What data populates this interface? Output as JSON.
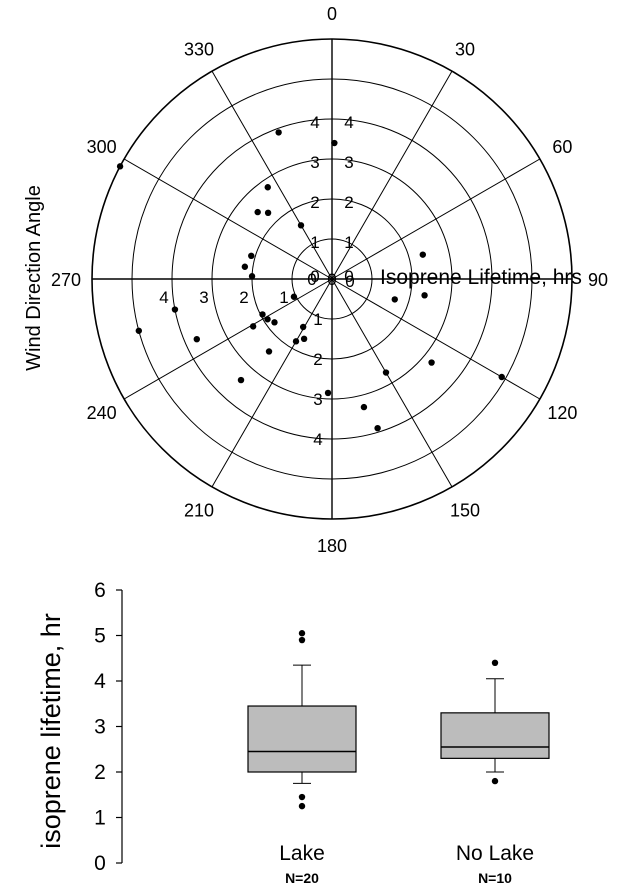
{
  "chart_data": [
    {
      "type": "scatter",
      "subtype": "polar",
      "title": "",
      "angle_label": "Wind Direction Angle",
      "radius_label": "Isoprene Lifetime, hrs",
      "angle_ticks": [
        "0",
        "30",
        "60",
        "90",
        "120",
        "150",
        "180",
        "210",
        "240",
        "270",
        "300",
        "330"
      ],
      "radius_ticks": [
        "0",
        "1",
        "2",
        "3",
        "4"
      ],
      "radius_range": [
        0,
        6
      ],
      "angle_range": [
        0,
        360
      ],
      "grid": true,
      "points": [
        {
          "angle": 340,
          "r": 3.9
        },
        {
          "angle": 1,
          "r": 3.4
        },
        {
          "angle": 325,
          "r": 2.8
        },
        {
          "angle": 312,
          "r": 2.5
        },
        {
          "angle": 316,
          "r": 2.3
        },
        {
          "angle": 330,
          "r": 1.55
        },
        {
          "angle": 298,
          "r": 6.0
        },
        {
          "angle": 286,
          "r": 2.1
        },
        {
          "angle": 278,
          "r": 2.2
        },
        {
          "angle": 272,
          "r": 2.0
        },
        {
          "angle": 259,
          "r": 4.0
        },
        {
          "angle": 255,
          "r": 5.0
        },
        {
          "angle": 246,
          "r": 3.7
        },
        {
          "angle": 239,
          "r": 2.3
        },
        {
          "angle": 243,
          "r": 1.95
        },
        {
          "angle": 238,
          "r": 1.9
        },
        {
          "angle": 233,
          "r": 1.8
        },
        {
          "angle": 221,
          "r": 2.4
        },
        {
          "angle": 222,
          "r": 3.4
        },
        {
          "angle": 245,
          "r": 1.05
        },
        {
          "angle": 211,
          "r": 1.4
        },
        {
          "angle": 210,
          "r": 1.8
        },
        {
          "angle": 205,
          "r": 1.65
        },
        {
          "angle": 182,
          "r": 2.85
        },
        {
          "angle": 166,
          "r": 3.3
        },
        {
          "angle": 150,
          "r": 2.7
        },
        {
          "angle": 130,
          "r": 3.25
        },
        {
          "angle": 120,
          "r": 4.9
        },
        {
          "angle": 108,
          "r": 1.65
        },
        {
          "angle": 75,
          "r": 2.35
        },
        {
          "angle": 100,
          "r": 2.35
        },
        {
          "angle": 163,
          "r": 3.9
        }
      ]
    },
    {
      "type": "box",
      "title": "",
      "xlabel": "",
      "ylabel": "isoprene lifetime, hr",
      "ylim": [
        0,
        6
      ],
      "yticks": [
        "0",
        "1",
        "2",
        "3",
        "4",
        "5",
        "6"
      ],
      "fill_color": "#bcbcbc",
      "groups": [
        {
          "label": "Lake",
          "n_label": "N=20",
          "whisker_low": 1.75,
          "q1": 2.0,
          "median": 2.45,
          "q3": 3.45,
          "whisker_high": 4.35,
          "outliers": [
            4.9,
            5.05,
            1.45,
            1.25
          ]
        },
        {
          "label": "No Lake",
          "n_label": "N=10",
          "whisker_low": 2.0,
          "q1": 2.3,
          "median": 2.55,
          "q3": 3.3,
          "whisker_high": 4.05,
          "outliers": [
            4.4,
            1.8
          ]
        }
      ]
    }
  ]
}
